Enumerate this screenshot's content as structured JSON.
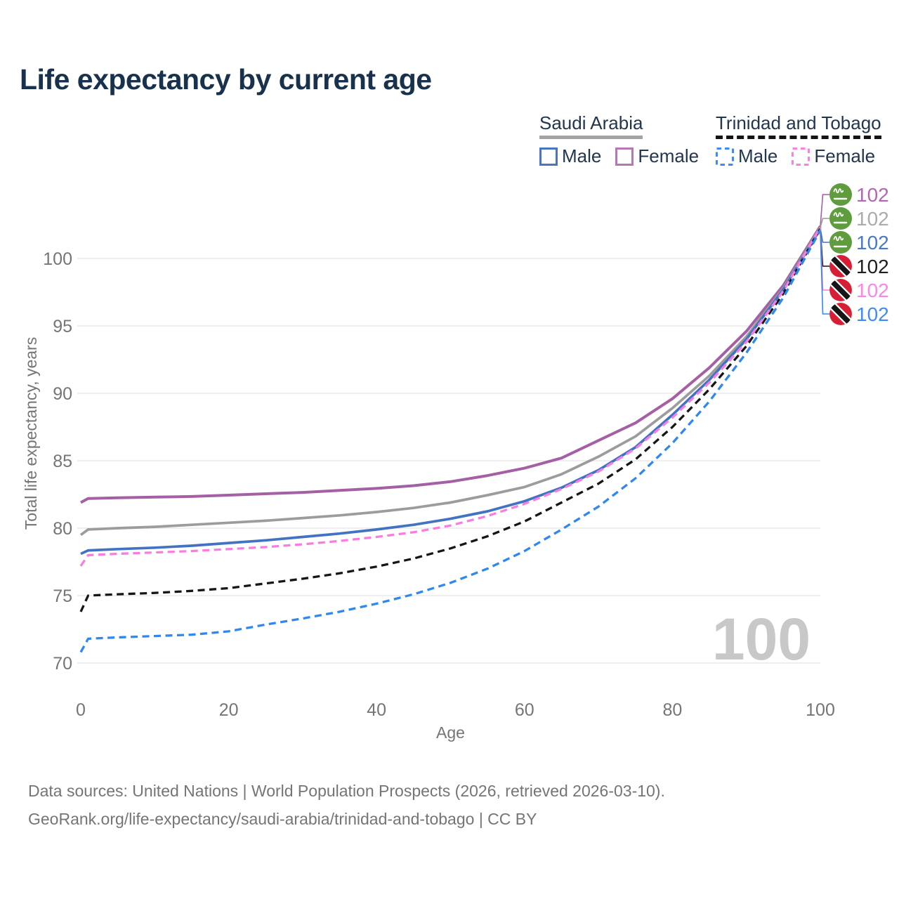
{
  "title": "Life expectancy by current age",
  "legend": {
    "groups": [
      {
        "country": "Saudi Arabia",
        "line_style": "solid",
        "line_color": "#a3a3a3",
        "items": [
          {
            "label": "Male",
            "swatch_color": "#4a76c0",
            "dashed": false
          },
          {
            "label": "Female",
            "swatch_color": "#b479b4",
            "dashed": false
          }
        ]
      },
      {
        "country": "Trinidad and Tobago",
        "line_style": "dashed",
        "line_color": "#141414",
        "items": [
          {
            "label": "Male",
            "swatch_color": "#3c8df2",
            "dashed": true
          },
          {
            "label": "Female",
            "swatch_color": "#fb80e4",
            "dashed": true
          }
        ]
      }
    ]
  },
  "chart_data": {
    "type": "line",
    "title": "Life expectancy by current age",
    "xlabel": "Age",
    "ylabel": "Total life expectancy, years",
    "xlim": [
      0,
      100
    ],
    "ylim": [
      69.7,
      103.2
    ],
    "xticks": [
      0,
      20,
      40,
      60,
      80,
      100
    ],
    "yticks": [
      70,
      75,
      80,
      85,
      90,
      95,
      100
    ],
    "grid": "horizontal",
    "legend_position": "top-right",
    "watermark": "100",
    "x": [
      0,
      1,
      5,
      10,
      15,
      20,
      25,
      30,
      35,
      40,
      45,
      50,
      55,
      60,
      65,
      70,
      75,
      80,
      85,
      90,
      95,
      100
    ],
    "series": [
      {
        "name": "Saudi Arabia Female",
        "country": "Saudi Arabia",
        "sex": "female",
        "color": "#a55fa5",
        "label_color": "#b168b1",
        "dash": false,
        "flag": "saudi-arabia",
        "end_label": "102",
        "values": [
          81.9,
          82.2,
          82.25,
          82.3,
          82.35,
          82.45,
          82.55,
          82.65,
          82.8,
          82.95,
          83.15,
          83.45,
          83.9,
          84.45,
          85.2,
          86.5,
          87.8,
          89.6,
          91.9,
          94.6,
          98.0,
          102.4
        ]
      },
      {
        "name": "Saudi Arabia Both sexes",
        "country": "Saudi Arabia",
        "sex": "all",
        "color": "#9c9c9c",
        "label_color": "#ababab",
        "dash": false,
        "flag": "saudi-arabia",
        "end_label": "102",
        "values": [
          79.5,
          79.9,
          80.0,
          80.1,
          80.25,
          80.4,
          80.55,
          80.75,
          80.95,
          81.2,
          81.5,
          81.9,
          82.45,
          83.05,
          84.0,
          85.3,
          86.8,
          88.9,
          91.3,
          94.2,
          97.8,
          102.3
        ]
      },
      {
        "name": "Saudi Arabia Male",
        "country": "Saudi Arabia",
        "sex": "male",
        "color": "#4273c2",
        "label_color": "#4a79c5",
        "dash": false,
        "flag": "saudi-arabia",
        "end_label": "102",
        "values": [
          78.1,
          78.35,
          78.45,
          78.55,
          78.7,
          78.9,
          79.1,
          79.35,
          79.6,
          79.9,
          80.25,
          80.7,
          81.25,
          82.0,
          83.0,
          84.3,
          86.0,
          88.4,
          91.0,
          94.0,
          97.7,
          102.2
        ]
      },
      {
        "name": "Trinidad and Tobago Both sexes",
        "country": "Trinidad and Tobago",
        "sex": "all",
        "color": "#161616",
        "label_color": "#1f1f1f",
        "dash": true,
        "flag": "trinidad-and-tobago",
        "end_label": "102",
        "values": [
          73.8,
          75.0,
          75.1,
          75.2,
          75.35,
          75.55,
          75.9,
          76.25,
          76.65,
          77.15,
          77.75,
          78.5,
          79.4,
          80.5,
          81.9,
          83.3,
          85.1,
          87.5,
          90.3,
          93.5,
          97.4,
          102.2
        ]
      },
      {
        "name": "Trinidad and Tobago Female",
        "country": "Trinidad and Tobago",
        "sex": "female",
        "color": "#f97ce0",
        "label_color": "#fc85e8",
        "dash": true,
        "flag": "trinidad-and-tobago",
        "end_label": "102",
        "values": [
          77.2,
          78.0,
          78.1,
          78.2,
          78.3,
          78.45,
          78.6,
          78.8,
          79.05,
          79.35,
          79.7,
          80.2,
          80.9,
          81.8,
          82.9,
          84.2,
          85.9,
          88.2,
          90.8,
          93.8,
          97.6,
          102.3
        ]
      },
      {
        "name": "Trinidad and Tobago Male",
        "country": "Trinidad and Tobago",
        "sex": "male",
        "color": "#2f88f0",
        "label_color": "#3f8df2",
        "dash": true,
        "flag": "trinidad-and-tobago",
        "end_label": "102",
        "values": [
          70.8,
          71.8,
          71.9,
          72.0,
          72.1,
          72.35,
          72.85,
          73.3,
          73.8,
          74.4,
          75.1,
          75.95,
          77.0,
          78.3,
          79.9,
          81.6,
          83.7,
          86.3,
          89.4,
          93.0,
          97.1,
          102.1
        ]
      }
    ]
  },
  "footer": {
    "line1": "Data sources: United Nations | World Population Prospects (2026, retrieved 2026-03-10).",
    "line2": "GeoRank.org/life-expectancy/saudi-arabia/trinidad-and-tobago | CC BY"
  }
}
